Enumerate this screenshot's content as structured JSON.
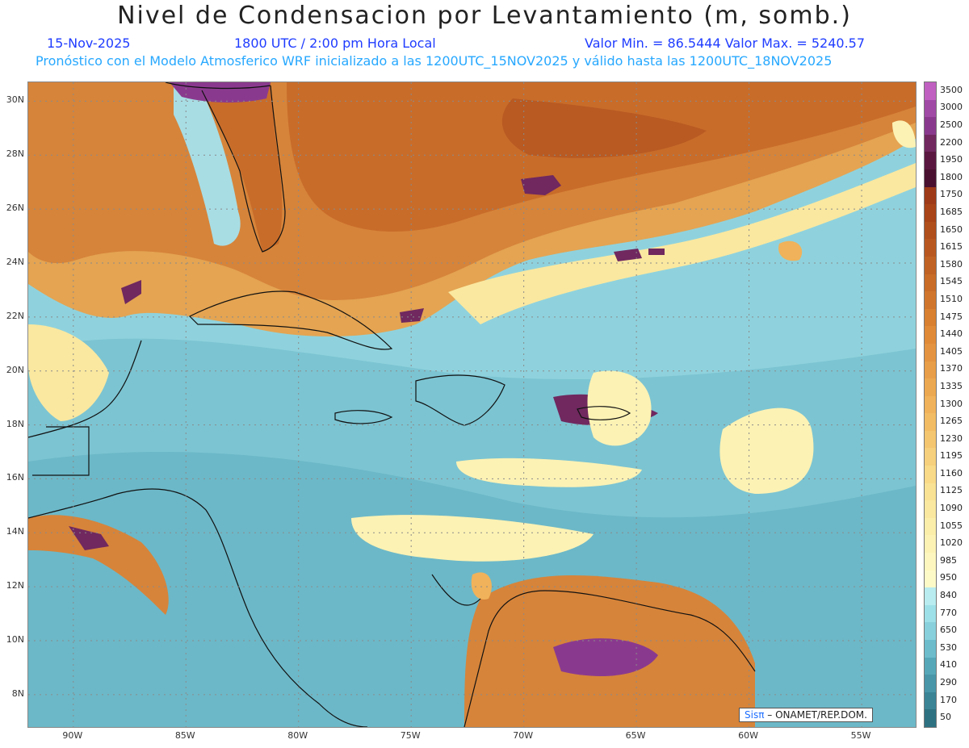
{
  "header": {
    "title": "Nivel de Condensacion por Levantamiento (m, somb.)",
    "date": "15-Nov-2025",
    "time": "1800 UTC / 2:00 pm Hora Local",
    "minmax": "Valor Min. = 86.5444   Valor Max. = 5240.57",
    "forecast": "Pronóstico con el Modelo Atmosferico WRF inicializado a las 1200UTC_15NOV2025 y válido hasta las  1200UTC_18NOV2025"
  },
  "map": {
    "lat_labels": [
      "30N",
      "28N",
      "26N",
      "24N",
      "22N",
      "20N",
      "18N",
      "16N",
      "14N",
      "12N",
      "10N",
      "8N"
    ],
    "lat_values": [
      30,
      28,
      26,
      24,
      22,
      20,
      18,
      16,
      14,
      12,
      10,
      8
    ],
    "lon_labels": [
      "90W",
      "85W",
      "80W",
      "75W",
      "70W",
      "65W",
      "60W",
      "55W"
    ],
    "lon_values": [
      -90,
      -85,
      -80,
      -75,
      -70,
      -65,
      -60,
      -55
    ],
    "lat_range": [
      6.8,
      30.7
    ],
    "lon_range": [
      -92,
      -52.6
    ]
  },
  "colorbar": {
    "labels": [
      "3500",
      "3000",
      "2500",
      "2200",
      "1950",
      "1800",
      "1750",
      "1685",
      "1650",
      "1615",
      "1580",
      "1545",
      "1510",
      "1475",
      "1440",
      "1405",
      "1370",
      "1335",
      "1300",
      "1265",
      "1230",
      "1195",
      "1160",
      "1125",
      "1090",
      "1055",
      "1020",
      "985",
      "950",
      "840",
      "770",
      "650",
      "530",
      "410",
      "290",
      "170",
      "50"
    ],
    "colors": [
      "#c060c0",
      "#a04aa6",
      "#8a3a8e",
      "#70285f",
      "#5a1840",
      "#4a1030",
      "#9e3a18",
      "#a84418",
      "#b04e1c",
      "#b85820",
      "#c06224",
      "#c86c28",
      "#d0762c",
      "#d88030",
      "#e08a38",
      "#e49440",
      "#e89e48",
      "#eca850",
      "#f0b25a",
      "#f2bc64",
      "#f4c670",
      "#f6d07c",
      "#f8da88",
      "#f9e294",
      "#fae8a0",
      "#fbeeaa",
      "#fcf2b4",
      "#fdf6be",
      "#fefac8",
      "#b8ecf0",
      "#9ee0e8",
      "#88d0dc",
      "#6cbccc",
      "#56a8b8",
      "#4896a8",
      "#3a8496",
      "#2e7282"
    ]
  },
  "credit": {
    "logo": "Sisπ",
    "text": "– ONAMET/REP.DOM."
  }
}
